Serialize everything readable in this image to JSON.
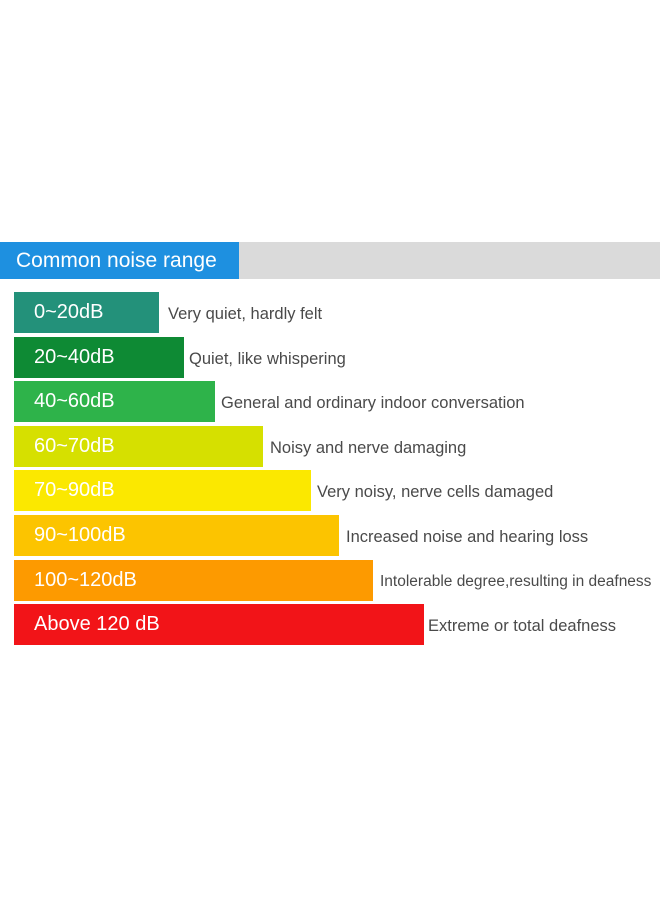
{
  "header": {
    "title": "Common noise range"
  },
  "levels": [
    {
      "range": "0~20dB",
      "description": "Very quiet, hardly felt",
      "color": "#23917a"
    },
    {
      "range": "20~40dB",
      "description": "Quiet, like whispering",
      "color": "#0e8a34"
    },
    {
      "range": "40~60dB",
      "description": "General and ordinary indoor conversation",
      "color": "#2eb34a"
    },
    {
      "range": "60~70dB",
      "description": "Noisy and nerve damaging",
      "color": "#d6e000"
    },
    {
      "range": "70~90dB",
      "description": "Very noisy, nerve cells damaged",
      "color": "#fbe800"
    },
    {
      "range": "90~100dB",
      "description": "Increased noise and hearing loss",
      "color": "#fcc400"
    },
    {
      "range": "100~120dB",
      "description": "Intolerable degree,resulting in deafness",
      "color": "#fd9a00"
    },
    {
      "range": "Above 120 dB",
      "description": "Extreme or total deafness",
      "color": "#f21418"
    }
  ]
}
